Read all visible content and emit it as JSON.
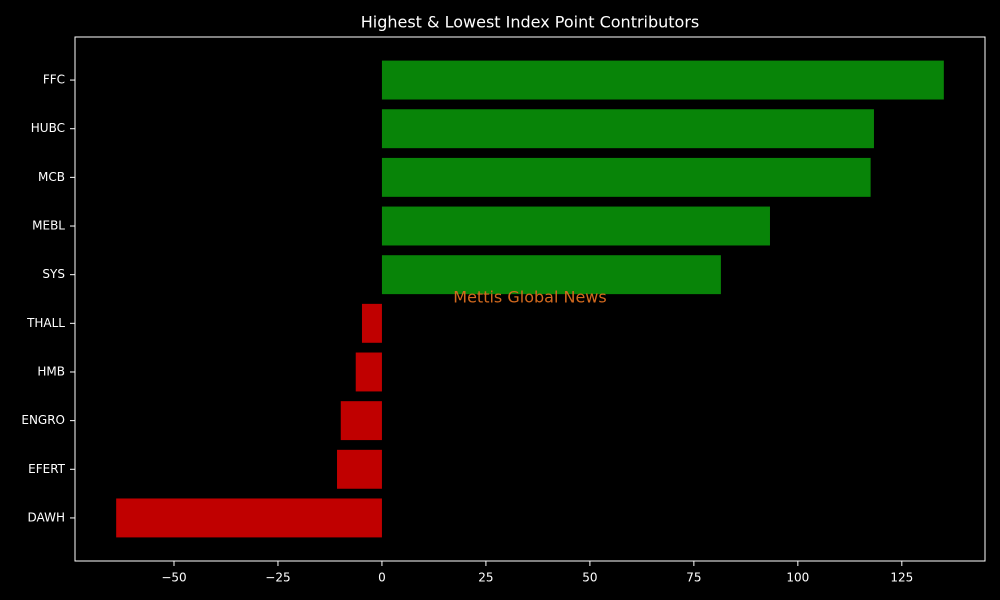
{
  "chart_data": {
    "type": "barh",
    "title": "Highest & Lowest Index Point Contributors",
    "watermark": "Mettis Global News",
    "categories": [
      "FFC",
      "HUBC",
      "MCB",
      "MEBL",
      "SYS",
      "THALL",
      "HMB",
      "ENGRO",
      "EFERT",
      "DAWH"
    ],
    "values": [
      135.1,
      118.3,
      117.5,
      93.3,
      81.5,
      -4.8,
      -6.3,
      -9.9,
      -10.8,
      -63.9
    ],
    "colors": [
      "#088408",
      "#088408",
      "#088408",
      "#088408",
      "#088408",
      "#c00000",
      "#c00000",
      "#c00000",
      "#c00000",
      "#c00000"
    ],
    "xlim": [
      -73.8,
      145
    ],
    "xticks": [
      {
        "value": -50,
        "label": "−50"
      },
      {
        "value": -25,
        "label": "−25"
      },
      0,
      25,
      50,
      75,
      100,
      125
    ]
  }
}
